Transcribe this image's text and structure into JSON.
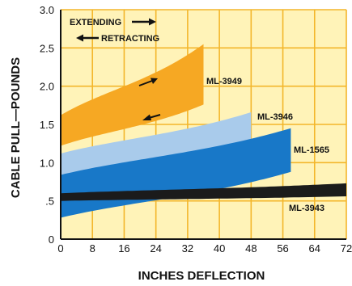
{
  "chart_data": {
    "type": "area",
    "title": "",
    "xlabel": "INCHES DEFLECTION",
    "ylabel": "CABLE PULL—POUNDS",
    "xlim": [
      0,
      72
    ],
    "ylim": [
      0,
      3.0
    ],
    "x_ticks": [
      "0",
      "8",
      "16",
      "24",
      "32",
      "40",
      "48",
      "56",
      "64",
      "72"
    ],
    "y_ticks": [
      "0",
      ".5",
      "1.0",
      "1.5",
      "2.0",
      "2.5",
      "3.0"
    ],
    "grid": true,
    "plot_background": "#fff3b8",
    "grid_color": "#f3b62b",
    "legend": {
      "extending": "EXTENDING",
      "retracting": "RETRACTING",
      "placement": "top-left"
    },
    "series": [
      {
        "name": "ML-3949",
        "color": "#f6a823",
        "x_max": 36,
        "upper": {
          "start": 1.62,
          "end": 2.55
        },
        "lower": {
          "start": 1.22,
          "end": 1.76
        }
      },
      {
        "name": "ML-3946",
        "color": "#a9cbeb",
        "x_max": 48,
        "upper": {
          "start": 1.12,
          "end": 1.66
        },
        "lower": {
          "start": 0.66,
          "end": 1.22
        }
      },
      {
        "name": "ML-1565",
        "color": "#1878c8",
        "x_max": 58,
        "upper": {
          "start": 0.84,
          "end": 1.45
        },
        "lower": {
          "start": 0.28,
          "end": 0.88
        }
      },
      {
        "name": "ML-3943",
        "color": "#1b1b1b",
        "x_max": 72,
        "upper": {
          "start": 0.6,
          "end": 0.73
        },
        "lower": {
          "start": 0.5,
          "end": 0.56
        }
      }
    ]
  }
}
